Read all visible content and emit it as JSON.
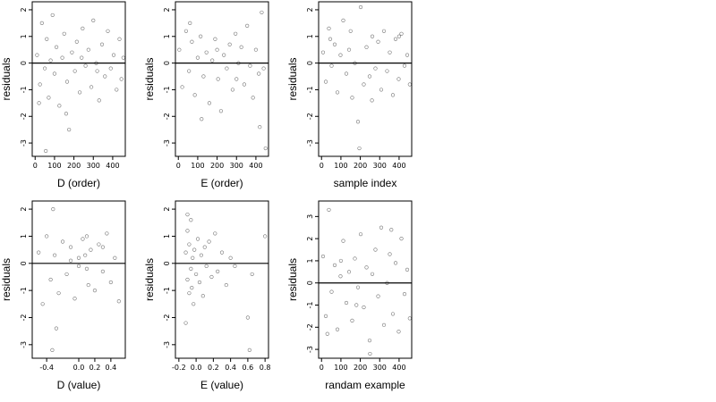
{
  "chart_data": [
    {
      "id": "p1",
      "type": "scatter",
      "xlabel": "D (order)",
      "ylabel": "residuals",
      "xlim": [
        -15,
        465
      ],
      "ylim": [
        -3.5,
        2.3
      ],
      "xticks": [
        0,
        100,
        200,
        300,
        400
      ],
      "yticks": [
        -3,
        -2,
        -1,
        0,
        1,
        2
      ],
      "hline": 0,
      "grid": false,
      "points": [
        [
          10,
          0.3
        ],
        [
          25,
          -0.8
        ],
        [
          35,
          1.5
        ],
        [
          50,
          -0.2
        ],
        [
          60,
          0.9
        ],
        [
          70,
          -1.3
        ],
        [
          80,
          0.1
        ],
        [
          90,
          1.8
        ],
        [
          100,
          -0.4
        ],
        [
          110,
          0.6
        ],
        [
          125,
          -1.6
        ],
        [
          140,
          0.2
        ],
        [
          150,
          1.1
        ],
        [
          165,
          -0.7
        ],
        [
          175,
          -2.5
        ],
        [
          190,
          0.4
        ],
        [
          205,
          -0.3
        ],
        [
          215,
          0.8
        ],
        [
          230,
          -1.1
        ],
        [
          245,
          1.3
        ],
        [
          260,
          -0.1
        ],
        [
          275,
          0.5
        ],
        [
          290,
          -0.9
        ],
        [
          300,
          1.6
        ],
        [
          315,
          0.0
        ],
        [
          330,
          -1.4
        ],
        [
          345,
          0.7
        ],
        [
          360,
          -0.5
        ],
        [
          375,
          1.2
        ],
        [
          390,
          -0.2
        ],
        [
          405,
          0.3
        ],
        [
          420,
          -1.0
        ],
        [
          435,
          0.9
        ],
        [
          445,
          -0.6
        ],
        [
          455,
          0.2
        ],
        [
          55,
          -3.3
        ],
        [
          20,
          -1.5
        ],
        [
          160,
          -1.9
        ],
        [
          240,
          0.2
        ],
        [
          320,
          -0.3
        ]
      ]
    },
    {
      "id": "p2",
      "type": "scatter",
      "xlabel": "E (order)",
      "ylabel": "residuals",
      "xlim": [
        -15,
        465
      ],
      "ylim": [
        -3.5,
        2.3
      ],
      "xticks": [
        0,
        100,
        200,
        300,
        400
      ],
      "yticks": [
        -3,
        -2,
        -1,
        0,
        1,
        2
      ],
      "hline": 0,
      "grid": false,
      "points": [
        [
          5,
          0.5
        ],
        [
          20,
          -0.9
        ],
        [
          40,
          1.2
        ],
        [
          55,
          -0.3
        ],
        [
          70,
          0.8
        ],
        [
          85,
          -1.2
        ],
        [
          100,
          0.2
        ],
        [
          115,
          1.0
        ],
        [
          130,
          -0.5
        ],
        [
          145,
          0.4
        ],
        [
          160,
          -1.5
        ],
        [
          175,
          0.1
        ],
        [
          190,
          0.9
        ],
        [
          205,
          -0.6
        ],
        [
          220,
          -1.8
        ],
        [
          235,
          0.3
        ],
        [
          250,
          -0.2
        ],
        [
          265,
          0.7
        ],
        [
          280,
          -1.0
        ],
        [
          295,
          1.1
        ],
        [
          310,
          0.0
        ],
        [
          325,
          0.6
        ],
        [
          340,
          -0.8
        ],
        [
          355,
          1.4
        ],
        [
          370,
          -0.1
        ],
        [
          385,
          -1.3
        ],
        [
          400,
          0.5
        ],
        [
          415,
          -0.4
        ],
        [
          430,
          1.9
        ],
        [
          440,
          -0.2
        ],
        [
          450,
          -3.2
        ],
        [
          60,
          1.5
        ],
        [
          120,
          -2.1
        ],
        [
          200,
          0.5
        ],
        [
          300,
          -0.6
        ],
        [
          420,
          -2.4
        ]
      ]
    },
    {
      "id": "p3",
      "type": "scatter",
      "xlabel": "sample index",
      "ylabel": "residuals",
      "xlim": [
        -15,
        465
      ],
      "ylim": [
        -3.5,
        2.3
      ],
      "xticks": [
        0,
        100,
        200,
        300,
        400
      ],
      "yticks": [
        -3,
        -2,
        -1,
        0,
        1,
        2
      ],
      "hline": 0,
      "grid": false,
      "points": [
        [
          8,
          0.4
        ],
        [
          22,
          -0.7
        ],
        [
          38,
          1.3
        ],
        [
          52,
          -0.1
        ],
        [
          68,
          0.7
        ],
        [
          82,
          -1.1
        ],
        [
          98,
          0.3
        ],
        [
          112,
          1.6
        ],
        [
          128,
          -0.4
        ],
        [
          142,
          0.5
        ],
        [
          158,
          -1.3
        ],
        [
          172,
          0.0
        ],
        [
          188,
          -2.2
        ],
        [
          195,
          -3.2
        ],
        [
          202,
          2.1
        ],
        [
          218,
          -0.8
        ],
        [
          232,
          0.6
        ],
        [
          248,
          -0.5
        ],
        [
          262,
          1.0
        ],
        [
          278,
          -0.2
        ],
        [
          292,
          0.8
        ],
        [
          308,
          -1.0
        ],
        [
          322,
          1.2
        ],
        [
          338,
          -0.3
        ],
        [
          352,
          0.4
        ],
        [
          368,
          -1.2
        ],
        [
          382,
          0.9
        ],
        [
          398,
          -0.6
        ],
        [
          412,
          1.1
        ],
        [
          428,
          -0.1
        ],
        [
          442,
          0.3
        ],
        [
          455,
          -0.8
        ],
        [
          45,
          0.9
        ],
        [
          150,
          1.2
        ],
        [
          260,
          -1.4
        ],
        [
          400,
          1.0
        ]
      ]
    },
    {
      "id": "p4",
      "type": "scatter",
      "xlabel": "D (value)",
      "ylabel": "residuals",
      "xlim": [
        -0.58,
        0.58
      ],
      "ylim": [
        -3.5,
        2.3
      ],
      "xticks": [
        -0.4,
        0.0,
        0.2,
        0.4
      ],
      "xticklabels": [
        "-0.4",
        "0.0",
        "0.2",
        "0.4"
      ],
      "yticks": [
        -3,
        -2,
        -1,
        0,
        1,
        2
      ],
      "hline": 0,
      "grid": false,
      "points": [
        [
          -0.5,
          0.4
        ],
        [
          -0.45,
          -1.5
        ],
        [
          -0.4,
          1.0
        ],
        [
          -0.35,
          -0.6
        ],
        [
          -0.32,
          2.0
        ],
        [
          -0.3,
          0.3
        ],
        [
          -0.25,
          -1.1
        ],
        [
          -0.2,
          0.8
        ],
        [
          -0.15,
          -0.4
        ],
        [
          -0.1,
          0.6
        ],
        [
          -0.05,
          -1.3
        ],
        [
          0.0,
          0.2
        ],
        [
          0.05,
          0.9
        ],
        [
          0.1,
          -0.2
        ],
        [
          0.1,
          1.0
        ],
        [
          0.12,
          -0.8
        ],
        [
          0.15,
          0.5
        ],
        [
          0.2,
          -1.0
        ],
        [
          0.25,
          0.7
        ],
        [
          0.3,
          -0.3
        ],
        [
          0.35,
          1.1
        ],
        [
          0.4,
          -0.7
        ],
        [
          0.45,
          0.2
        ],
        [
          0.5,
          -1.4
        ],
        [
          -0.33,
          -3.2
        ],
        [
          -0.28,
          -2.4
        ],
        [
          0.0,
          -0.1
        ],
        [
          -0.1,
          0.1
        ],
        [
          0.08,
          0.3
        ],
        [
          0.3,
          0.6
        ]
      ]
    },
    {
      "id": "p5",
      "type": "scatter",
      "xlabel": "E (value)",
      "ylabel": "residuals",
      "xlim": [
        -0.24,
        0.84
      ],
      "ylim": [
        -3.5,
        2.3
      ],
      "xticks": [
        -0.2,
        0.0,
        0.2,
        0.4,
        0.6,
        0.8
      ],
      "xticklabels": [
        "-0.2",
        "0.0",
        "0.2",
        "0.4",
        "0.6",
        "0.8"
      ],
      "yticks": [
        -3,
        -2,
        -1,
        0,
        1,
        2
      ],
      "hline": 0,
      "grid": false,
      "points": [
        [
          -0.12,
          0.4
        ],
        [
          -0.1,
          -0.6
        ],
        [
          -0.1,
          1.2
        ],
        [
          -0.08,
          -1.1
        ],
        [
          -0.08,
          0.7
        ],
        [
          -0.06,
          -0.2
        ],
        [
          -0.06,
          1.6
        ],
        [
          -0.05,
          -0.9
        ],
        [
          -0.04,
          0.2
        ],
        [
          -0.03,
          -1.5
        ],
        [
          -0.02,
          0.5
        ],
        [
          0.0,
          -0.4
        ],
        [
          0.02,
          0.9
        ],
        [
          0.04,
          -0.7
        ],
        [
          0.06,
          0.3
        ],
        [
          0.08,
          -1.2
        ],
        [
          0.1,
          0.6
        ],
        [
          0.12,
          -0.1
        ],
        [
          0.15,
          0.8
        ],
        [
          0.18,
          -0.5
        ],
        [
          0.22,
          1.1
        ],
        [
          0.25,
          -0.3
        ],
        [
          0.3,
          0.4
        ],
        [
          0.35,
          -0.8
        ],
        [
          0.4,
          0.2
        ],
        [
          0.45,
          -0.1
        ],
        [
          0.62,
          -3.2
        ],
        [
          0.6,
          -2.0
        ],
        [
          0.65,
          -0.4
        ],
        [
          0.8,
          1.0
        ],
        [
          -0.12,
          -2.2
        ],
        [
          -0.1,
          1.8
        ]
      ]
    },
    {
      "id": "p6",
      "type": "scatter",
      "xlabel": "randam example",
      "ylabel": "residuals",
      "xlim": [
        -15,
        465
      ],
      "ylim": [
        -3.4,
        3.7
      ],
      "xticks": [
        0,
        100,
        200,
        300,
        400
      ],
      "yticks": [
        -3,
        -2,
        -1,
        0,
        1,
        2,
        3
      ],
      "hline": 0,
      "grid": false,
      "points": [
        [
          8,
          1.2
        ],
        [
          22,
          -1.5
        ],
        [
          38,
          3.3
        ],
        [
          52,
          -0.4
        ],
        [
          68,
          0.8
        ],
        [
          82,
          -2.1
        ],
        [
          98,
          0.3
        ],
        [
          112,
          1.9
        ],
        [
          128,
          -0.9
        ],
        [
          142,
          0.5
        ],
        [
          158,
          -1.7
        ],
        [
          172,
          1.1
        ],
        [
          188,
          -0.2
        ],
        [
          202,
          2.2
        ],
        [
          218,
          -1.1
        ],
        [
          232,
          0.7
        ],
        [
          248,
          -2.6
        ],
        [
          262,
          0.4
        ],
        [
          278,
          1.5
        ],
        [
          292,
          -0.6
        ],
        [
          308,
          2.5
        ],
        [
          322,
          -1.9
        ],
        [
          338,
          0.0
        ],
        [
          352,
          1.3
        ],
        [
          368,
          -1.4
        ],
        [
          382,
          0.9
        ],
        [
          398,
          -2.2
        ],
        [
          412,
          2.0
        ],
        [
          428,
          -0.5
        ],
        [
          442,
          0.6
        ],
        [
          455,
          -1.6
        ],
        [
          250,
          -3.2
        ],
        [
          30,
          -2.3
        ],
        [
          360,
          2.4
        ],
        [
          180,
          -1.0
        ],
        [
          100,
          1.0
        ]
      ]
    }
  ]
}
